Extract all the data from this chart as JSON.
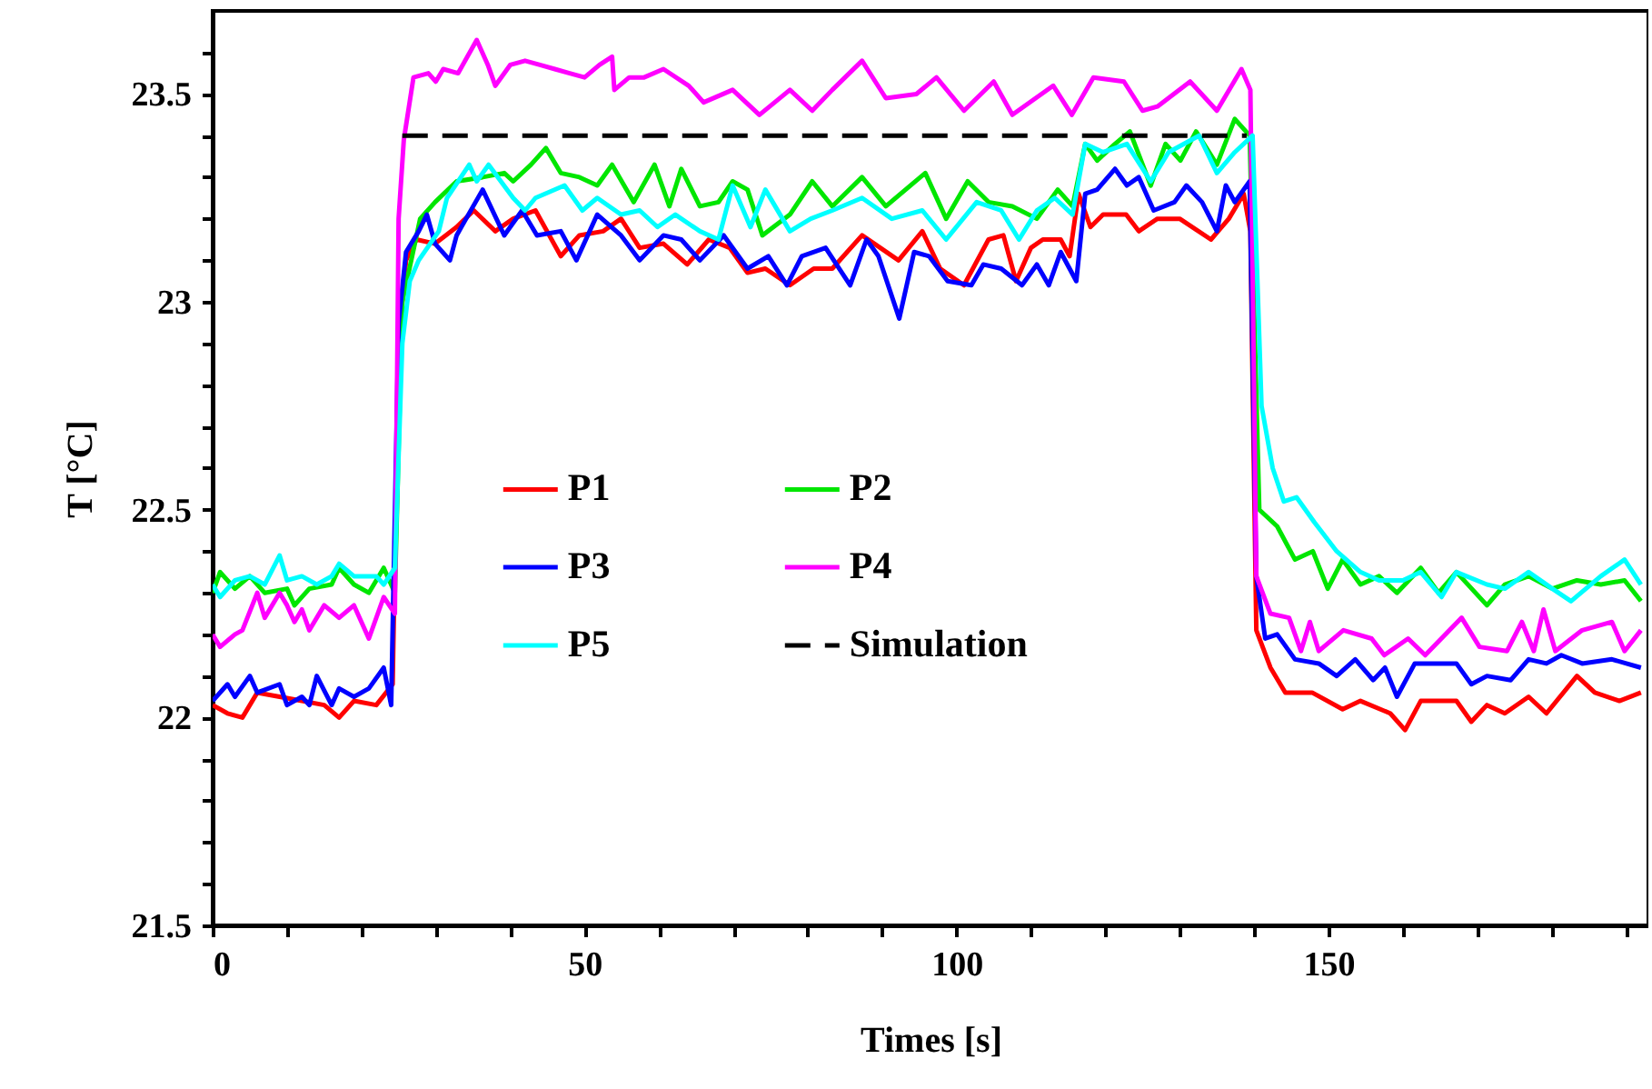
{
  "chart_data": {
    "type": "line",
    "xlabel": "Times [s]",
    "ylabel": "T [°C]",
    "xlim": [
      0,
      193
    ],
    "ylim": [
      21.5,
      23.7
    ],
    "xticks": [
      0,
      {
        "value": 10,
        "label": null
      },
      {
        "value": 20,
        "label": null
      },
      {
        "value": 30,
        "label": null
      },
      {
        "value": 40,
        "label": null
      },
      50,
      {
        "value": 60,
        "label": null
      },
      {
        "value": 70,
        "label": null
      },
      {
        "value": 80,
        "label": null
      },
      {
        "value": 90,
        "label": null
      },
      100,
      {
        "value": 110,
        "label": null
      },
      {
        "value": 120,
        "label": null
      },
      {
        "value": 130,
        "label": null
      },
      {
        "value": 140,
        "label": null
      },
      150,
      {
        "value": 160,
        "label": null
      },
      {
        "value": 170,
        "label": null
      },
      {
        "value": 180,
        "label": null
      },
      {
        "value": 190,
        "label": null
      }
    ],
    "yticks": [
      21.5,
      {
        "value": 21.6,
        "label": null
      },
      {
        "value": 21.7,
        "label": null
      },
      {
        "value": 21.8,
        "label": null
      },
      {
        "value": 21.9,
        "label": null
      },
      22,
      {
        "value": 22.1,
        "label": null
      },
      {
        "value": 22.2,
        "label": null
      },
      {
        "value": 22.3,
        "label": null
      },
      {
        "value": 22.4,
        "label": null
      },
      22.5,
      {
        "value": 22.6,
        "label": null
      },
      {
        "value": 22.7,
        "label": null
      },
      {
        "value": 22.8,
        "label": null
      },
      {
        "value": 22.9,
        "label": null
      },
      23,
      {
        "value": 23.1,
        "label": null
      },
      {
        "value": 23.2,
        "label": null
      },
      {
        "value": 23.3,
        "label": null
      },
      {
        "value": 23.4,
        "label": null
      },
      23.5,
      {
        "value": 23.6,
        "label": null
      }
    ],
    "grid": false,
    "legend": "center",
    "marker": "none",
    "series": [
      {
        "name": "P1",
        "color": "#ff0000",
        "x": [
          0,
          2,
          4,
          6,
          9,
          12,
          15,
          17,
          19,
          22,
          24.2,
          25,
          26,
          27.4,
          29.9,
          32.8,
          35.1,
          38,
          40.4,
          43.4,
          46.8,
          49.3,
          52.5,
          54.9,
          57.4,
          60.6,
          63.8,
          66.7,
          69.5,
          71.9,
          74.3,
          77.6,
          80.8,
          83.3,
          87.3,
          92.2,
          95.4,
          97.8,
          101,
          104.3,
          106.3,
          108,
          110,
          111.6,
          114,
          115.2,
          116.4,
          118,
          119.7,
          122.8,
          124.5,
          127,
          130,
          134.2,
          136.6,
          138.6,
          139.5,
          140.3,
          142.2,
          144.2,
          147.8,
          151.9,
          154.3,
          158.3,
          160.3,
          162.4,
          167.2,
          169.2,
          171.3,
          173.7,
          176.9,
          179.3,
          183.4,
          185.8,
          189.1,
          192
        ],
        "values": [
          22.03,
          22.01,
          22.0,
          22.06,
          22.05,
          22.04,
          22.03,
          22.0,
          22.04,
          22.03,
          22.08,
          22.9,
          23.1,
          23.15,
          23.14,
          23.18,
          23.22,
          23.17,
          23.2,
          23.22,
          23.11,
          23.16,
          23.17,
          23.2,
          23.13,
          23.14,
          23.09,
          23.15,
          23.13,
          23.07,
          23.08,
          23.04,
          23.08,
          23.08,
          23.16,
          23.1,
          23.17,
          23.08,
          23.04,
          23.15,
          23.16,
          23.05,
          23.13,
          23.15,
          23.15,
          23.11,
          23.26,
          23.18,
          23.21,
          23.21,
          23.17,
          23.2,
          23.2,
          23.15,
          23.2,
          23.26,
          23.17,
          22.21,
          22.12,
          22.06,
          22.06,
          22.02,
          22.04,
          22.01,
          21.97,
          22.04,
          22.04,
          21.99,
          22.03,
          22.01,
          22.05,
          22.01,
          22.1,
          22.06,
          22.04,
          22.06
        ]
      },
      {
        "name": "P2",
        "color": "#00e600",
        "x": [
          0,
          1,
          3,
          5,
          7,
          10,
          11,
          13,
          16,
          17,
          19,
          21,
          23,
          24.5,
          25.5,
          27.9,
          29.9,
          32.8,
          36.3,
          39.2,
          40.4,
          42.8,
          44.8,
          46.8,
          49.3,
          51.7,
          53.7,
          56.6,
          59.4,
          61.4,
          63,
          65.5,
          68,
          69.9,
          71.9,
          73.9,
          77.6,
          80.6,
          83.3,
          87.3,
          90.5,
          93.8,
          95.8,
          98.6,
          101.5,
          104.3,
          107.5,
          110.8,
          113.6,
          115.6,
          117.3,
          118.9,
          121.3,
          123.3,
          126.1,
          128.1,
          130.1,
          132.2,
          135,
          137.4,
          139.4,
          140.7,
          143.1,
          145.5,
          147.9,
          149.9,
          151.9,
          154.3,
          156.8,
          159.2,
          162.4,
          164.8,
          167.2,
          171.3,
          173.7,
          176.9,
          180.1,
          183.4,
          186.6,
          189.8,
          192
        ],
        "values": [
          22.3,
          22.35,
          22.31,
          22.34,
          22.3,
          22.31,
          22.27,
          22.31,
          22.32,
          22.36,
          22.32,
          22.3,
          22.36,
          22.3,
          23.0,
          23.2,
          23.24,
          23.29,
          23.3,
          23.31,
          23.29,
          23.33,
          23.37,
          23.31,
          23.3,
          23.28,
          23.33,
          23.24,
          23.33,
          23.23,
          23.32,
          23.23,
          23.24,
          23.29,
          23.27,
          23.16,
          23.21,
          23.29,
          23.23,
          23.3,
          23.23,
          23.28,
          23.31,
          23.2,
          23.29,
          23.24,
          23.23,
          23.2,
          23.27,
          23.23,
          23.38,
          23.34,
          23.38,
          23.41,
          23.28,
          23.38,
          23.34,
          23.41,
          23.33,
          23.44,
          23.4,
          22.5,
          22.46,
          22.38,
          22.4,
          22.31,
          22.38,
          22.32,
          22.34,
          22.3,
          22.36,
          22.3,
          22.35,
          22.27,
          22.32,
          22.34,
          22.31,
          22.33,
          22.32,
          22.33,
          22.28
        ]
      },
      {
        "name": "P3",
        "color": "#0000ff",
        "x": [
          0,
          2,
          3,
          5,
          6,
          9,
          10,
          12,
          13,
          14,
          16,
          17,
          19,
          21,
          23,
          24,
          25,
          26,
          27.7,
          28.8,
          29.9,
          31.9,
          32.8,
          36.3,
          39.2,
          41.6,
          43.6,
          46.8,
          48.9,
          51.7,
          54.9,
          57.4,
          60.6,
          63,
          65.5,
          68.7,
          71.9,
          74.7,
          77.2,
          79.2,
          82.4,
          85.7,
          87.9,
          89.5,
          92.3,
          94.3,
          96.3,
          98.8,
          102,
          103.6,
          106,
          108.8,
          110.8,
          112.4,
          114,
          116.1,
          117.3,
          118.9,
          121.3,
          122.9,
          124.5,
          126.5,
          129.3,
          130.9,
          133,
          135,
          136.2,
          137.4,
          139.4,
          140.3,
          141.5,
          143.1,
          145.5,
          148.7,
          151.1,
          153.6,
          156,
          157.6,
          159.2,
          161.6,
          167.2,
          169.2,
          171.3,
          174.5,
          176.9,
          179.3,
          181.3,
          184.1,
          188.1,
          192
        ],
        "values": [
          22.04,
          22.08,
          22.05,
          22.1,
          22.06,
          22.08,
          22.03,
          22.05,
          22.03,
          22.1,
          22.03,
          22.07,
          22.05,
          22.07,
          22.12,
          22.03,
          22.95,
          23.12,
          23.17,
          23.21,
          23.14,
          23.1,
          23.16,
          23.27,
          23.16,
          23.22,
          23.16,
          23.17,
          23.1,
          23.21,
          23.16,
          23.1,
          23.16,
          23.15,
          23.1,
          23.16,
          23.08,
          23.11,
          23.04,
          23.11,
          23.13,
          23.04,
          23.15,
          23.11,
          22.96,
          23.12,
          23.11,
          23.05,
          23.04,
          23.09,
          23.08,
          23.04,
          23.09,
          23.04,
          23.12,
          23.05,
          23.26,
          23.27,
          23.32,
          23.28,
          23.3,
          23.22,
          23.24,
          23.28,
          23.24,
          23.17,
          23.28,
          23.24,
          23.29,
          22.34,
          22.19,
          22.2,
          22.14,
          22.13,
          22.1,
          22.14,
          22.09,
          22.12,
          22.05,
          22.13,
          22.13,
          22.08,
          22.1,
          22.09,
          22.14,
          22.13,
          22.15,
          22.13,
          22.14,
          22.12
        ]
      },
      {
        "name": "P4",
        "color": "#ff00ff",
        "x": [
          0,
          1,
          3,
          4,
          6,
          7,
          9,
          10,
          11,
          12,
          13,
          15,
          17,
          19,
          21,
          23,
          24.5,
          25,
          25.7,
          27,
          29,
          30,
          31,
          33,
          35.5,
          37,
          38,
          40,
          42,
          44,
          46,
          48,
          50,
          52,
          53.7,
          54,
          56,
          58,
          60.6,
          64,
          66,
          69.9,
          73.5,
          77.6,
          80.6,
          83.3,
          87.3,
          90.5,
          94.6,
          97.3,
          101,
          105,
          107.5,
          113,
          115.5,
          118.4,
          122.5,
          125,
          127,
          131.4,
          135,
          138.3,
          139.5,
          140.3,
          142.2,
          144.7,
          146.3,
          147.5,
          148.7,
          152,
          155.8,
          157.5,
          160.7,
          163,
          167.9,
          170.3,
          174,
          176,
          177.6,
          178.9,
          180.5,
          184.1,
          188.1,
          189.8,
          192
        ],
        "values": [
          22.2,
          22.17,
          22.2,
          22.21,
          22.3,
          22.24,
          22.3,
          22.27,
          22.23,
          22.26,
          22.21,
          22.27,
          22.24,
          22.27,
          22.19,
          22.29,
          22.25,
          23.2,
          23.39,
          23.54,
          23.55,
          23.53,
          23.56,
          23.55,
          23.63,
          23.57,
          23.52,
          23.57,
          23.58,
          23.57,
          23.56,
          23.55,
          23.54,
          23.57,
          23.59,
          23.51,
          23.54,
          23.54,
          23.56,
          23.52,
          23.48,
          23.51,
          23.45,
          23.51,
          23.46,
          23.51,
          23.58,
          23.49,
          23.5,
          23.54,
          23.46,
          23.53,
          23.45,
          23.52,
          23.45,
          23.54,
          23.53,
          23.46,
          23.47,
          23.53,
          23.46,
          23.56,
          23.51,
          22.34,
          22.25,
          22.24,
          22.16,
          22.23,
          22.16,
          22.21,
          22.19,
          22.15,
          22.19,
          22.15,
          22.24,
          22.17,
          22.16,
          22.23,
          22.16,
          22.26,
          22.16,
          22.21,
          22.23,
          22.16,
          22.21
        ]
      },
      {
        "name": "P5",
        "color": "#00ffff",
        "x": [
          0,
          1,
          3,
          5,
          7,
          9,
          10,
          12,
          14,
          16,
          17,
          19,
          22,
          23,
          24.5,
          25.5,
          26.5,
          27.7,
          30.4,
          31.5,
          34.5,
          35.5,
          37.1,
          40.4,
          42,
          43.4,
          47.3,
          49.7,
          51.7,
          54.9,
          57.4,
          59.8,
          62.2,
          65.5,
          68,
          69.9,
          72.3,
          74.3,
          77.6,
          80.4,
          83.3,
          87.3,
          91.3,
          95.4,
          98.6,
          102.7,
          106,
          108.4,
          110.8,
          113.2,
          115.6,
          117.3,
          119.7,
          122.9,
          126.1,
          128.5,
          132.6,
          135,
          137.4,
          139.8,
          141,
          142.5,
          144,
          145.7,
          148.1,
          151.1,
          154.3,
          156.8,
          160,
          162.4,
          165.2,
          167.2,
          171.3,
          173.7,
          176.9,
          180.1,
          182.6,
          186.6,
          189.8,
          192
        ],
        "values": [
          22.32,
          22.29,
          22.33,
          22.34,
          22.32,
          22.39,
          22.33,
          22.34,
          22.32,
          22.34,
          22.37,
          22.34,
          22.34,
          22.32,
          22.36,
          22.9,
          23.05,
          23.1,
          23.17,
          23.25,
          23.33,
          23.29,
          23.33,
          23.25,
          23.22,
          23.25,
          23.28,
          23.22,
          23.25,
          23.21,
          23.22,
          23.18,
          23.21,
          23.17,
          23.15,
          23.28,
          23.18,
          23.27,
          23.17,
          23.2,
          23.22,
          23.25,
          23.2,
          23.22,
          23.15,
          23.24,
          23.22,
          23.15,
          23.22,
          23.25,
          23.21,
          23.38,
          23.36,
          23.38,
          23.29,
          23.36,
          23.4,
          23.31,
          23.36,
          23.4,
          22.75,
          22.6,
          22.52,
          22.53,
          22.47,
          22.4,
          22.35,
          22.33,
          22.33,
          22.35,
          22.29,
          22.35,
          22.32,
          22.31,
          22.35,
          22.31,
          22.28,
          22.34,
          22.38,
          22.32
        ]
      },
      {
        "name": "Simulation",
        "color": "#000000",
        "line_style": "dashed",
        "x": [
          25.5,
          139
        ],
        "values": [
          23.4,
          23.4
        ]
      }
    ]
  }
}
